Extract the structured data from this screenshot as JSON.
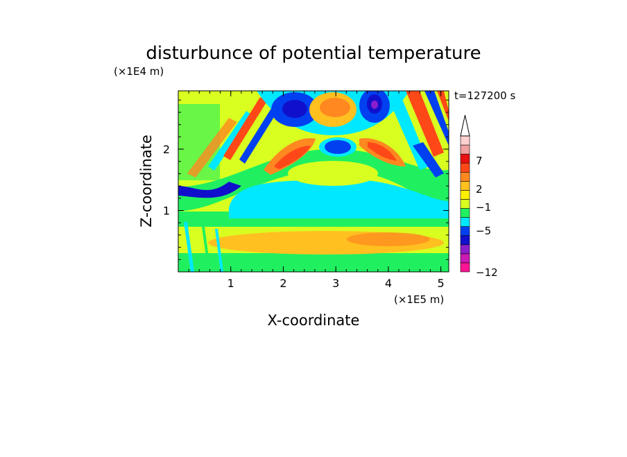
{
  "chart_data": {
    "type": "heatmap",
    "title": "disturbunce of potential temperature",
    "xlabel": "X-coordinate",
    "ylabel": "Z-coordinate",
    "x_unit": "(×1E5 m)",
    "y_unit": "(×1E4 m)",
    "time_label": "t=127200 s",
    "xlim": [
      0,
      5.15
    ],
    "ylim": [
      0,
      2.95
    ],
    "x_ticks": [
      "1",
      "2",
      "3",
      "4",
      "5"
    ],
    "y_ticks": [
      "1",
      "2"
    ],
    "colorbar": {
      "levels": [
        -12,
        -11,
        -9,
        -7,
        -5,
        -4,
        -3,
        -1,
        0,
        1,
        2,
        3,
        5,
        7,
        9,
        12
      ],
      "tick_labels": [
        "7",
        "2",
        "−1",
        "−5",
        "−12"
      ],
      "colors": [
        "#ff1493",
        "#cc1ab4",
        "#8b1ecc",
        "#1010cc",
        "#0040f0",
        "#00e8ff",
        "#20f060",
        "#d8ff20",
        "#ffef00",
        "#ffc020",
        "#ff8820",
        "#ff4818",
        "#e81010",
        "#f0a0a0",
        "#ffd0d0"
      ],
      "extend": "max"
    }
  }
}
